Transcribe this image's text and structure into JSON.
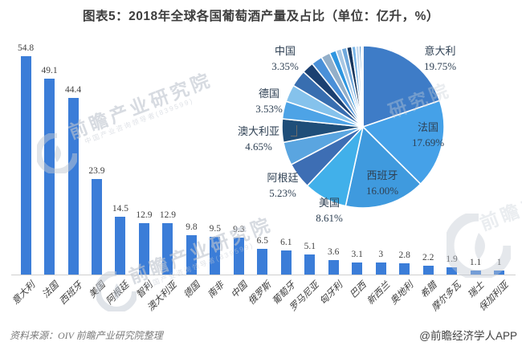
{
  "title": "图表5：2018年全球各国葡萄酒产量及占比（单位：亿升，%）",
  "footer": {
    "source": "资料来源：OIV  前瞻产业研究院整理",
    "credit": "@前瞻经济学人APP"
  },
  "watermark": {
    "text": "前瞻产业研究院",
    "text_partial": "研究院",
    "subtext": "中国产业咨询领导者(839599)",
    "logo": "qianzhan-swoosh-logo"
  },
  "colors": {
    "bar": "#3b7dd8",
    "axis_line": "#cfcfcf",
    "title_text": "#3d3d3d",
    "value_label": "#404040",
    "pie_label": "#2f4154",
    "watermark": "#c3cad4"
  },
  "chart_data": [
    {
      "type": "bar",
      "categories": [
        "意大利",
        "法国",
        "西班牙",
        "美国",
        "阿根廷",
        "智利",
        "澳大利亚",
        "德国",
        "南非",
        "中国",
        "俄罗斯",
        "葡萄牙",
        "罗马尼亚",
        "匈牙利",
        "巴西",
        "新西兰",
        "奥地利",
        "希腊",
        "摩尔多瓦",
        "瑞士",
        "保加利亚"
      ],
      "values": [
        54.8,
        49.1,
        44.4,
        23.9,
        14.5,
        12.9,
        12.9,
        9.8,
        9.5,
        9.3,
        6.5,
        6.1,
        5.1,
        3.6,
        3.1,
        3,
        2.8,
        2.2,
        1.9,
        1.1,
        1
      ],
      "value_labels": [
        "54.8",
        "49.1",
        "44.4",
        "23.9",
        "14.5",
        "12.9",
        "12.9",
        "9.8",
        "9.5",
        "9.3",
        "6.5",
        "6.1",
        "5.1",
        "3.6",
        "3.1",
        "3",
        "2.8",
        "2.2",
        "1.9",
        "1.1",
        "1"
      ],
      "unit": "亿升",
      "grid": false,
      "bar_color": "#3b7dd8"
    },
    {
      "type": "pie",
      "unit": "%",
      "start_angle_deg": -90,
      "direction": "clockwise",
      "slices": [
        {
          "name": "意大利",
          "pct": 19.75,
          "color": "#3e7cc7"
        },
        {
          "name": "法国",
          "pct": 17.69,
          "color": "#45a1e8"
        },
        {
          "name": "西班牙",
          "pct": 16.0,
          "color": "#3f9ade"
        },
        {
          "name": "美国",
          "pct": 8.61,
          "color": "#41b0ea"
        },
        {
          "name": "阿根廷",
          "pct": 5.23,
          "color": "#3d6eb4"
        },
        {
          "name": "智利",
          "pct": 4.65,
          "color": "#5aa5e0"
        },
        {
          "name": "澳大利亚",
          "pct": 4.65,
          "color": "#1f4e79"
        },
        {
          "name": "德国",
          "pct": 3.53,
          "color": "#4da3e6"
        },
        {
          "name": "南非",
          "pct": 3.42,
          "color": "#85c2ec"
        },
        {
          "name": "中国",
          "pct": 3.35,
          "color": "#386eb0"
        },
        {
          "name": "俄罗斯",
          "pct": 2.34,
          "color": "#1b4071"
        },
        {
          "name": "葡萄牙",
          "pct": 2.2,
          "color": "#4a90d8"
        },
        {
          "name": "罗马尼亚",
          "pct": 1.84,
          "color": "#93afc9"
        },
        {
          "name": "匈牙利",
          "pct": 1.3,
          "color": "#2f96e0"
        },
        {
          "name": "巴西",
          "pct": 1.12,
          "color": "#a9c7e3"
        },
        {
          "name": "新西兰",
          "pct": 1.08,
          "color": "#6fa8dc"
        },
        {
          "name": "奥地利",
          "pct": 1.01,
          "color": "#17365d"
        },
        {
          "name": "希腊",
          "pct": 0.79,
          "color": "#7ab6e8"
        },
        {
          "name": "摩尔多瓦",
          "pct": 0.68,
          "color": "#c4d9ee"
        },
        {
          "name": "瑞士",
          "pct": 0.4,
          "color": "#3f87c9"
        },
        {
          "name": "保加利亚",
          "pct": 0.36,
          "color": "#d9e6f4"
        }
      ]
    }
  ],
  "pie_callouts": [
    {
      "country": "中国",
      "pct": "3.35%"
    },
    {
      "country": "意大利",
      "pct": "19.75%"
    },
    {
      "country": "德国",
      "pct": "3.53%"
    },
    {
      "country": "法国",
      "pct": "17.69%"
    },
    {
      "country": "澳大利亚",
      "pct": "4.65%"
    },
    {
      "country": "阿根廷",
      "pct": "5.23%"
    },
    {
      "country": "西班牙",
      "pct": "16.00%"
    },
    {
      "country": "美国",
      "pct": "8.61%"
    }
  ]
}
